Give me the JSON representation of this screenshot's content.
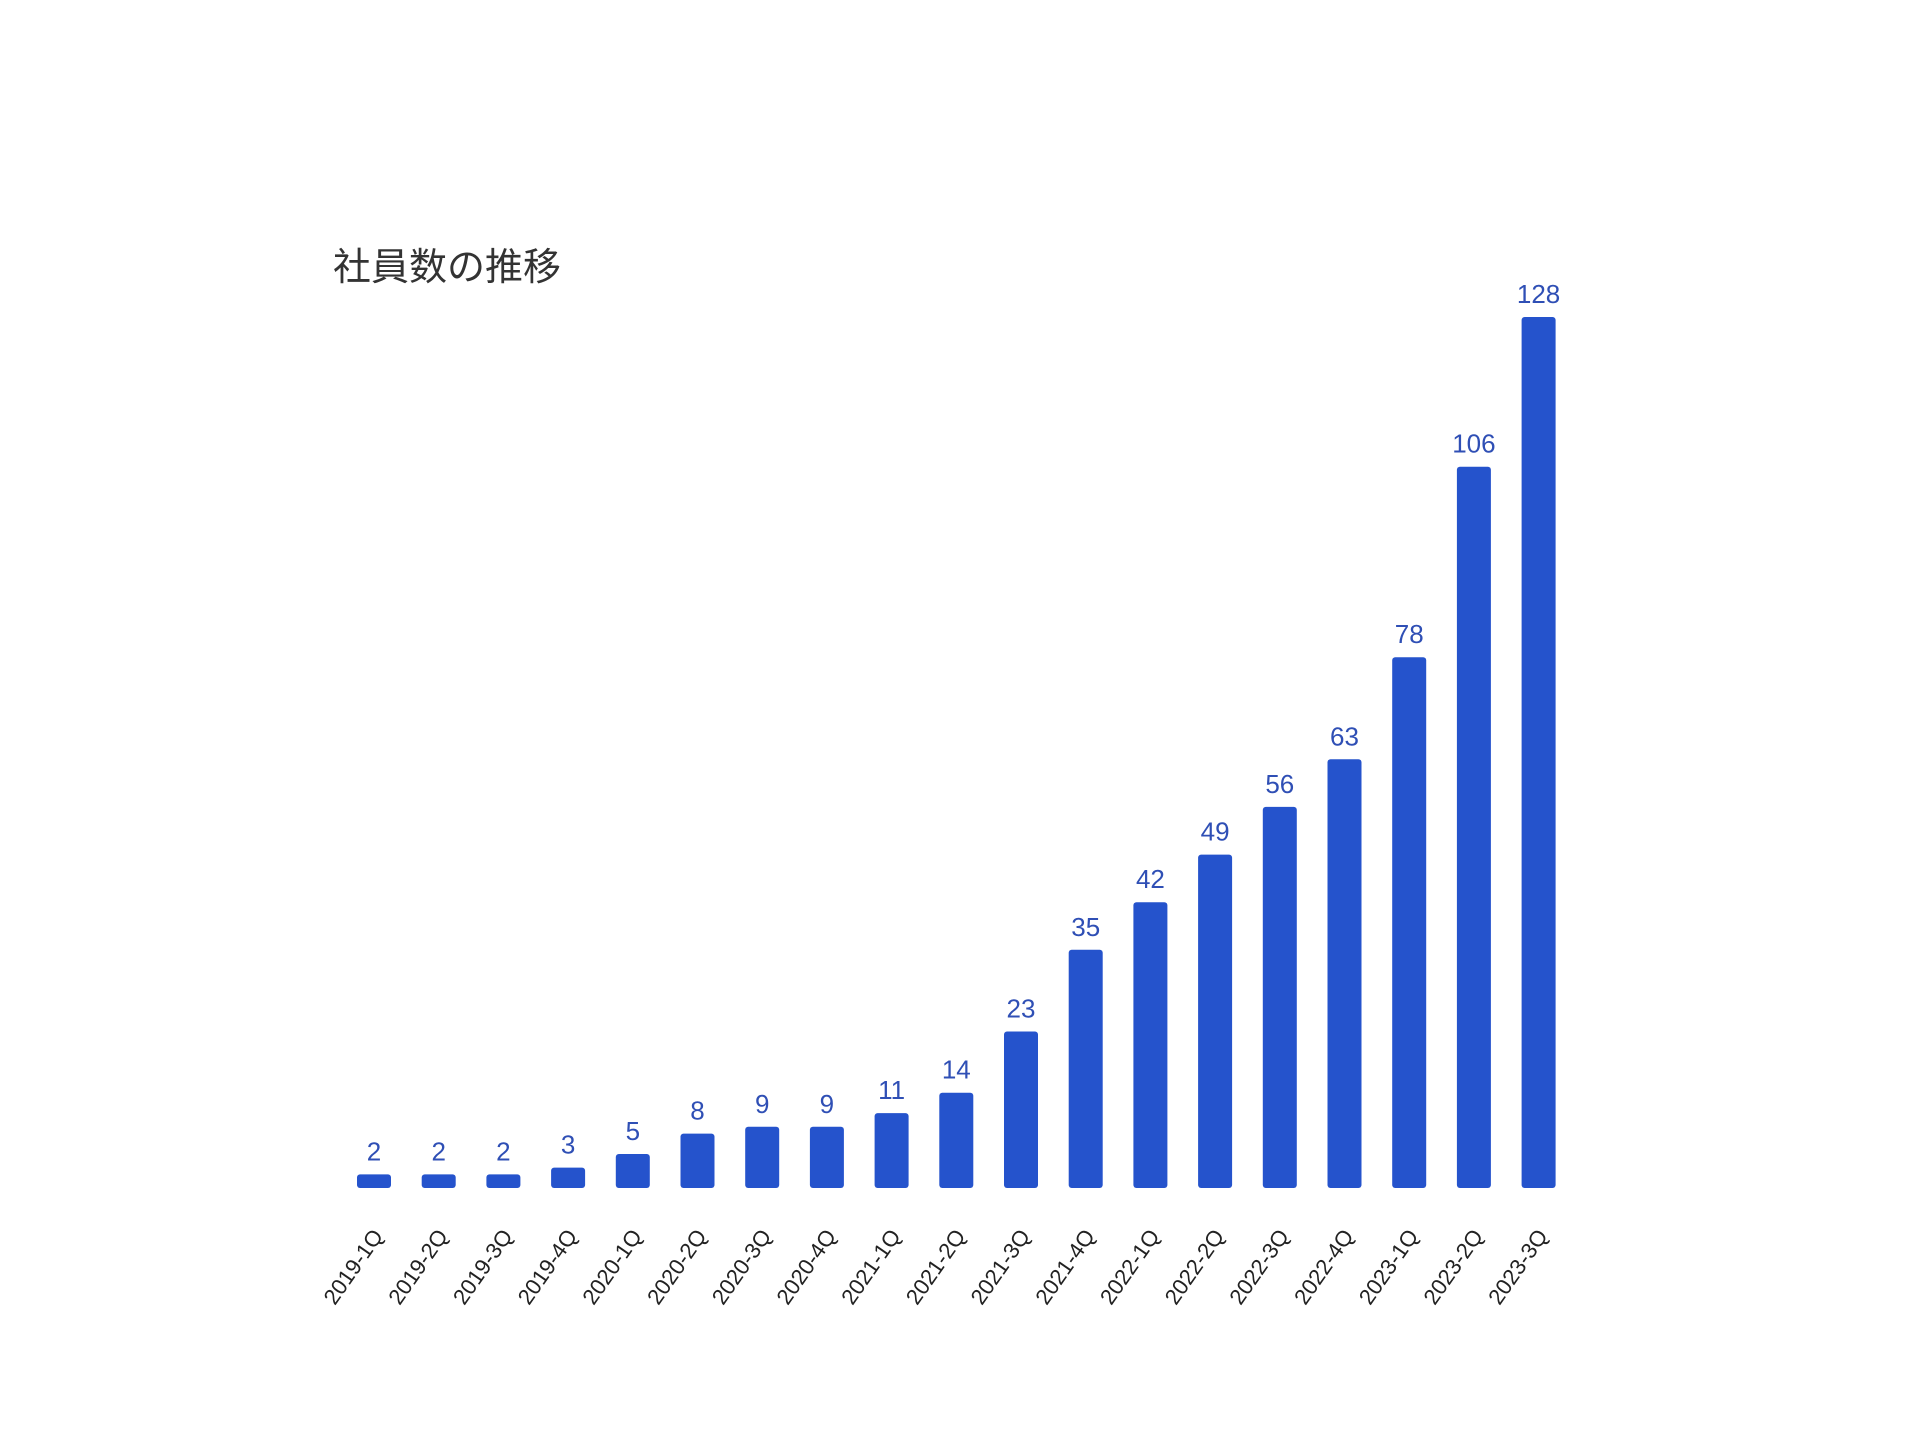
{
  "chart_data": {
    "type": "bar",
    "title": "社員数の推移",
    "categories": [
      "2019-1Q",
      "2019-2Q",
      "2019-3Q",
      "2019-4Q",
      "2020-1Q",
      "2020-2Q",
      "2020-3Q",
      "2020-4Q",
      "2021-1Q",
      "2021-2Q",
      "2021-3Q",
      "2021-4Q",
      "2022-1Q",
      "2022-2Q",
      "2022-3Q",
      "2022-4Q",
      "2023-1Q",
      "2023-2Q",
      "2023-3Q"
    ],
    "values": [
      2,
      2,
      2,
      3,
      5,
      8,
      9,
      9,
      11,
      14,
      23,
      35,
      42,
      49,
      56,
      63,
      78,
      106,
      128
    ],
    "ylim": [
      0,
      128
    ],
    "grid": false,
    "data_labels": true,
    "colors": {
      "bar": "#2553CC",
      "label": "#2F4FB5",
      "tick": "#222222",
      "title": "#333333"
    }
  }
}
